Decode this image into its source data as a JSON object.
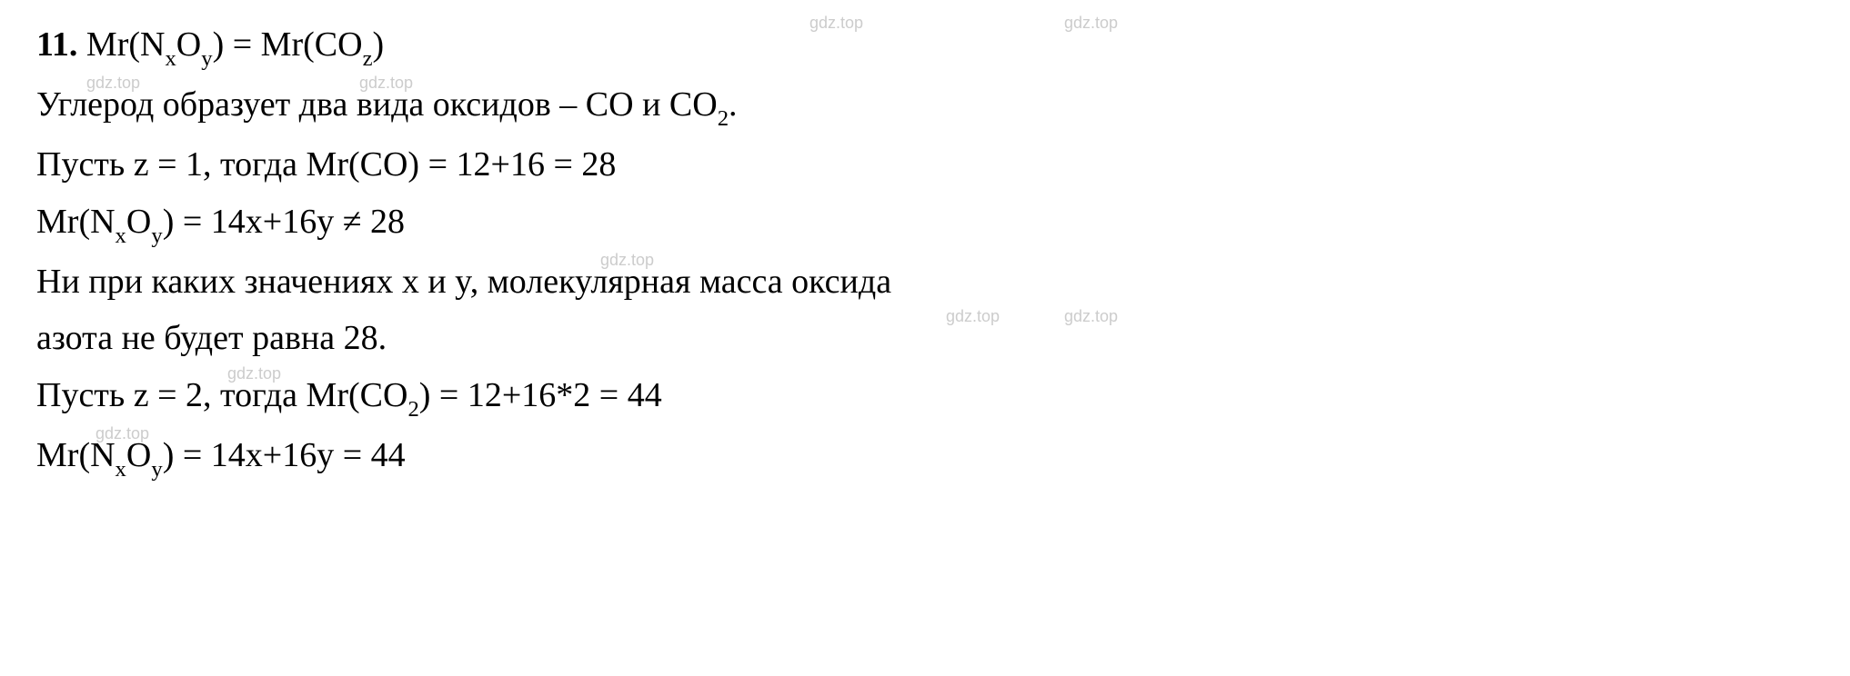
{
  "watermark_text": "gdz.top",
  "problem_number": "11.",
  "lines": {
    "line1": {
      "prefix": "Mr(N",
      "sub_x": "x",
      "mid1": "O",
      "sub_y": "y",
      "mid2": ") = Mr(CO",
      "sub_z": "z",
      "suffix": ")"
    },
    "line2": {
      "text_a": "Углерод образует два вида оксидов – CO и CO",
      "sub_2": "2",
      "suffix": "."
    },
    "line3": {
      "text": "Пусть z = 1, тогда Mr(CO) = 12+16 = 28"
    },
    "line4": {
      "prefix": "Mr(N",
      "sub_x": "x",
      "mid1": "O",
      "sub_y": "y",
      "suffix": ") = 14x+16y ≠ 28"
    },
    "line5": {
      "text": "Ни при каких значениях x и y, молекулярная масса оксида"
    },
    "line6": {
      "text": "азота не будет равна 28."
    },
    "line7": {
      "prefix": "Пусть z = 2, тогда Mr(CO",
      "sub_2": "2",
      "suffix": ") = 12+16*2 = 44"
    },
    "line8": {
      "prefix": "Mr(N",
      "sub_x": "x",
      "mid1": "O",
      "sub_y": "y",
      "suffix": ") = 14x+16y = 44"
    }
  },
  "colors": {
    "text": "#000000",
    "background": "#ffffff",
    "watermark": "#cccccc"
  },
  "typography": {
    "main_fontsize": 38,
    "watermark_fontsize": 18,
    "main_font": "Times New Roman",
    "watermark_font": "Arial"
  }
}
